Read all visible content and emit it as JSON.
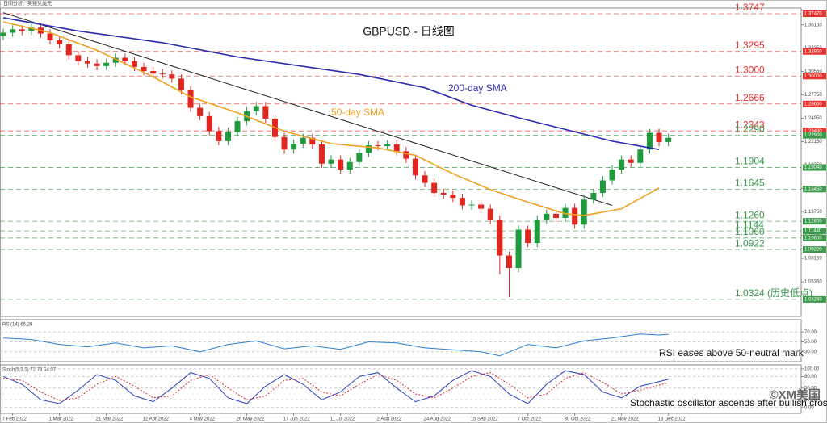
{
  "header": "日间分析：英镑兑美元",
  "logo": "©XM美国",
  "chart_data": [
    {
      "type": "candlestick",
      "title": "GBPUSD - 日线图",
      "categories": [
        null,
        "7 Feb 2022",
        null,
        null,
        null,
        null,
        "1 Mar 2022",
        null,
        null,
        null,
        null,
        "21 Mar 2022",
        null,
        null,
        null,
        null,
        "12 Apr 2022",
        null,
        null,
        null,
        null,
        "4 May 2022",
        null,
        null,
        null,
        null,
        "26 May 2022",
        null,
        null,
        null,
        null,
        "17 Jun 2022",
        null,
        null,
        null,
        null,
        "11 Jul 2022",
        null,
        null,
        null,
        null,
        "2 Aug 2022",
        null,
        null,
        null,
        null,
        "24 Aug 2022",
        null,
        null,
        null,
        null,
        "15 Sep 2022",
        null,
        null,
        null,
        null,
        "7 Oct 2022",
        null,
        null,
        null,
        null,
        "30 Oct 2022",
        null,
        null,
        null,
        null,
        "21 Nov 2022",
        null,
        null,
        null,
        null,
        "13 Dec 2022"
      ],
      "open": [
        1.348,
        1.352,
        1.356,
        1.354,
        1.358,
        1.351,
        1.343,
        1.338,
        1.325,
        1.318,
        1.315,
        1.312,
        1.316,
        1.322,
        1.318,
        1.311,
        1.306,
        1.303,
        1.302,
        1.297,
        1.283,
        1.262,
        1.252,
        1.234,
        1.222,
        1.233,
        1.246,
        1.258,
        1.264,
        1.249,
        1.227,
        1.212,
        1.219,
        1.226,
        1.218,
        1.195,
        1.2,
        1.188,
        1.197,
        1.208,
        1.217,
        1.216,
        1.218,
        1.21,
        1.201,
        1.181,
        1.172,
        1.16,
        1.158,
        1.154,
        1.145,
        1.146,
        1.141,
        1.128,
        1.085,
        1.07,
        1.116,
        1.1,
        1.128,
        1.135,
        1.13,
        1.142,
        1.122,
        1.152,
        1.16,
        1.175,
        1.188,
        1.2,
        1.196,
        1.212,
        1.232,
        1.221
      ],
      "high": [
        1.357,
        1.361,
        1.361,
        1.363,
        1.363,
        1.356,
        1.348,
        1.343,
        1.33,
        1.323,
        1.32,
        1.321,
        1.327,
        1.327,
        1.323,
        1.316,
        1.311,
        1.308,
        1.307,
        1.302,
        1.288,
        1.267,
        1.257,
        1.239,
        1.238,
        1.251,
        1.263,
        1.269,
        1.269,
        1.254,
        1.232,
        1.224,
        1.231,
        1.231,
        1.223,
        1.205,
        1.205,
        1.202,
        1.213,
        1.222,
        1.222,
        1.223,
        1.223,
        1.215,
        1.206,
        1.186,
        1.177,
        1.165,
        1.163,
        1.159,
        1.151,
        1.151,
        1.146,
        1.133,
        1.09,
        1.121,
        1.121,
        1.133,
        1.14,
        1.14,
        1.147,
        1.147,
        1.157,
        1.165,
        1.18,
        1.193,
        1.205,
        1.205,
        1.217,
        1.237,
        1.237,
        1.231
      ],
      "low": [
        1.343,
        1.347,
        1.349,
        1.349,
        1.346,
        1.338,
        1.333,
        1.32,
        1.313,
        1.31,
        1.307,
        1.307,
        1.311,
        1.313,
        1.306,
        1.301,
        1.298,
        1.297,
        1.292,
        1.278,
        1.257,
        1.247,
        1.229,
        1.217,
        1.217,
        1.228,
        1.241,
        1.253,
        1.244,
        1.222,
        1.207,
        1.207,
        1.214,
        1.213,
        1.19,
        1.19,
        1.183,
        1.183,
        1.192,
        1.203,
        1.211,
        1.211,
        1.205,
        1.196,
        1.176,
        1.167,
        1.155,
        1.153,
        1.149,
        1.14,
        1.14,
        1.136,
        1.123,
        1.062,
        1.035,
        1.065,
        1.095,
        1.095,
        1.123,
        1.125,
        1.125,
        1.117,
        1.117,
        1.147,
        1.155,
        1.17,
        1.183,
        1.191,
        1.191,
        1.207,
        1.216,
        1.216
      ],
      "close": [
        1.352,
        1.356,
        1.354,
        1.358,
        1.351,
        1.343,
        1.338,
        1.325,
        1.318,
        1.315,
        1.312,
        1.316,
        1.322,
        1.318,
        1.311,
        1.306,
        1.303,
        1.302,
        1.297,
        1.283,
        1.262,
        1.252,
        1.234,
        1.222,
        1.233,
        1.246,
        1.258,
        1.264,
        1.249,
        1.227,
        1.212,
        1.219,
        1.226,
        1.218,
        1.195,
        1.2,
        1.188,
        1.197,
        1.208,
        1.217,
        1.216,
        1.218,
        1.21,
        1.201,
        1.181,
        1.172,
        1.16,
        1.158,
        1.154,
        1.145,
        1.146,
        1.141,
        1.128,
        1.085,
        1.07,
        1.116,
        1.1,
        1.128,
        1.135,
        1.13,
        1.142,
        1.122,
        1.152,
        1.16,
        1.175,
        1.188,
        1.2,
        1.196,
        1.212,
        1.232,
        1.221,
        1.226
      ],
      "up_color": "#1f9a3c",
      "down_color": "#e0261f",
      "series": [
        {
          "name": "200-day SMA",
          "color": "#2b2bb0",
          "x": [
            0,
            8,
            17,
            25,
            38,
            45,
            50,
            55,
            60,
            65,
            70
          ],
          "values": [
            1.37,
            1.354,
            1.34,
            1.323,
            1.302,
            1.286,
            1.265,
            1.25,
            1.236,
            1.222,
            1.212
          ]
        },
        {
          "name": "50-day SMA",
          "color": "#f0a020",
          "x": [
            0,
            5,
            10,
            16,
            20,
            25,
            30,
            35,
            40,
            44,
            48,
            52,
            56,
            60,
            62,
            66,
            70
          ],
          "values": [
            1.365,
            1.352,
            1.331,
            1.299,
            1.275,
            1.256,
            1.234,
            1.219,
            1.214,
            1.205,
            1.183,
            1.164,
            1.149,
            1.135,
            1.133,
            1.141,
            1.166
          ]
        }
      ],
      "trendline": {
        "color": "#222222",
        "x": [
          0,
          65
        ],
        "values": [
          1.376,
          1.145
        ]
      },
      "levels": [
        {
          "value": 1.3747,
          "label": "1.3747",
          "axis_label": "1.37470",
          "color": "#e8302c"
        },
        {
          "value": 1.3295,
          "label": "1.3295",
          "axis_label": "1.32950",
          "color": "#e8302c"
        },
        {
          "value": 1.3,
          "label": "1.3000",
          "axis_label": "1.30000",
          "color": "#e8302c"
        },
        {
          "value": 1.2666,
          "label": "1.2666",
          "axis_label": "1.26660",
          "color": "#e8302c"
        },
        {
          "value": 1.2343,
          "label": "1.2343",
          "axis_label": "1.23430",
          "color": "#e8302c"
        },
        {
          "value": 1.229,
          "label": "1.2290",
          "axis_label": "1.22900",
          "color": "#3a9a4a"
        },
        {
          "value": 1.1904,
          "label": "1.1904",
          "axis_label": "1.19040",
          "color": "#3a9a4a"
        },
        {
          "value": 1.1645,
          "label": "1.1645",
          "axis_label": "1.16450",
          "color": "#3a9a4a"
        },
        {
          "value": 1.126,
          "label": "1.1260",
          "axis_label": "1.12600",
          "color": "#3a9a4a"
        },
        {
          "value": 1.1144,
          "label": "1.1144",
          "axis_label": "1.11440",
          "color": "#3a9a4a"
        },
        {
          "value": 1.106,
          "label": "1.1060",
          "axis_label": "1.10600",
          "color": "#3a9a4a"
        },
        {
          "value": 1.0922,
          "label": "1.0922",
          "axis_label": "1.09220",
          "color": "#3a9a4a"
        },
        {
          "value": 1.0324,
          "label": "1.0324 (历史低点)",
          "axis_label": "1.03240",
          "color": "#3a9a4a"
        }
      ],
      "xlim": [
        -0.35,
        85.17
      ],
      "ylim": [
        1.012,
        1.3815
      ],
      "yticks": [
        {
          "value": 1.0535,
          "label": "1.05350"
        },
        {
          "value": 1.0815,
          "label": "1.08150"
        },
        {
          "value": 1.1095,
          "label": "1.10950"
        },
        {
          "value": 1.1375,
          "label": "1.13750"
        },
        {
          "value": 1.1655,
          "label": "1.16550"
        },
        {
          "value": 1.1935,
          "label": "1.19350"
        },
        {
          "value": 1.2215,
          "label": "1.22150"
        },
        {
          "value": 1.2495,
          "label": "1.24950"
        },
        {
          "value": 1.2775,
          "label": "1.27750"
        },
        {
          "value": 1.3055,
          "label": "1.30550"
        },
        {
          "value": 1.3335,
          "label": "1.33350"
        },
        {
          "value": 1.3615,
          "label": "1.36150"
        }
      ]
    },
    {
      "type": "line",
      "title": "RSI(14) 65.29",
      "annotation": "RSI eases above 50-neutral mark",
      "xlim": [
        -0.35,
        85.17
      ],
      "ylim": [
        10,
        95
      ],
      "yticks": [
        {
          "value": 70,
          "label": "70.00"
        },
        {
          "value": 50,
          "label": "50.00"
        },
        {
          "value": 30,
          "label": "30.00"
        }
      ],
      "series": [
        {
          "color": "#2a7fd4",
          "x": [
            0,
            3,
            6,
            9,
            12,
            15,
            18,
            21,
            24,
            27,
            30,
            33,
            36,
            39,
            42,
            45,
            48,
            51,
            53,
            56,
            59,
            62,
            65,
            68,
            70,
            71
          ],
          "values": [
            58,
            55,
            45,
            40,
            48,
            38,
            42,
            30,
            45,
            52,
            36,
            42,
            35,
            50,
            48,
            38,
            34,
            30,
            22,
            45,
            38,
            52,
            58,
            66,
            64,
            65.29
          ]
        }
      ]
    },
    {
      "type": "line",
      "title": "Stoch(5,3,3) 72.73 64.07",
      "annotation": "Stochastic oscillator ascends after bullish cross",
      "xlim": [
        -0.35,
        85.17
      ],
      "ylim": [
        -15,
        110
      ],
      "yticks": [
        {
          "value": 100,
          "label": "100.00"
        },
        {
          "value": 80,
          "label": "80.00"
        },
        {
          "value": 50,
          "label": "50.00"
        },
        {
          "value": 20,
          "label": "20.00"
        },
        {
          "value": 0,
          "label": "0.00"
        }
      ],
      "series": [
        {
          "color": "#2a3fbf",
          "dash": false,
          "x": [
            0,
            2,
            4,
            6,
            8,
            10,
            12,
            14,
            16,
            18,
            20,
            22,
            24,
            26,
            28,
            30,
            32,
            34,
            36,
            38,
            40,
            42,
            44,
            46,
            48,
            50,
            52,
            54,
            56,
            58,
            60,
            62,
            64,
            66,
            68,
            71
          ],
          "values": [
            80,
            60,
            20,
            10,
            45,
            85,
            70,
            30,
            15,
            50,
            90,
            75,
            25,
            10,
            55,
            85,
            60,
            20,
            40,
            80,
            90,
            50,
            15,
            30,
            70,
            95,
            80,
            35,
            10,
            60,
            95,
            85,
            40,
            25,
            55,
            72.73
          ]
        },
        {
          "color": "#d62828",
          "dash": true,
          "x": [
            0,
            2,
            4,
            6,
            8,
            10,
            12,
            14,
            16,
            18,
            20,
            22,
            24,
            26,
            28,
            30,
            32,
            34,
            36,
            38,
            40,
            42,
            44,
            46,
            48,
            50,
            52,
            54,
            56,
            58,
            60,
            62,
            64,
            66,
            68,
            71
          ],
          "values": [
            75,
            70,
            40,
            18,
            25,
            60,
            80,
            55,
            25,
            30,
            70,
            85,
            50,
            20,
            30,
            70,
            75,
            40,
            30,
            60,
            85,
            70,
            35,
            25,
            50,
            80,
            90,
            60,
            25,
            35,
            75,
            90,
            65,
            35,
            45,
            64.07
          ]
        }
      ]
    }
  ]
}
